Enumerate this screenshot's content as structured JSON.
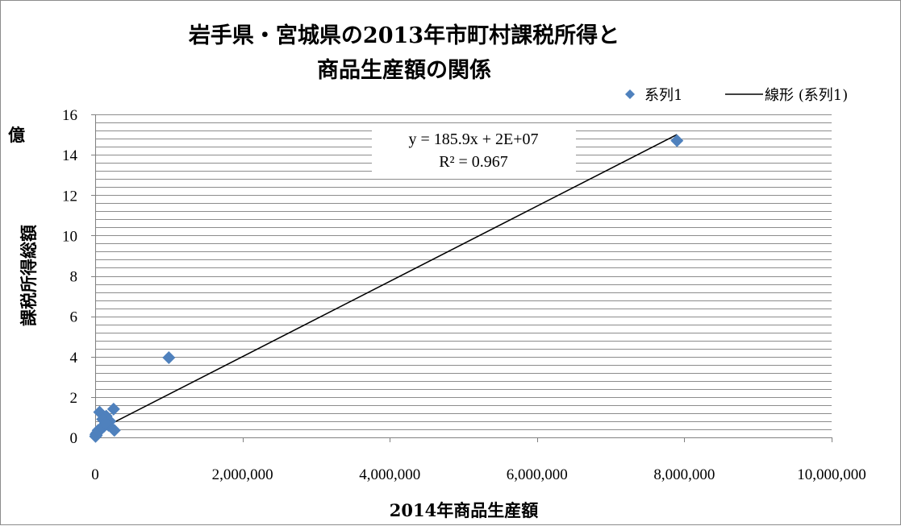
{
  "chart_data": {
    "type": "scatter",
    "title_lines": [
      "岩手県・宮城県の2013年市町村課税所得と",
      "商品生産額の関係"
    ],
    "xlabel": "2014年商品生産額",
    "ylabel": "課税所得総額",
    "y_unit": "億",
    "xlim": [
      0,
      10000000
    ],
    "ylim": [
      0,
      16
    ],
    "x_ticks": [
      0,
      2000000,
      4000000,
      6000000,
      8000000,
      10000000
    ],
    "x_tick_labels": [
      "0",
      "2,000,000",
      "4,000,000",
      "6,000,000",
      "8,000,000",
      "10,000,000"
    ],
    "y_ticks": [
      0,
      2,
      4,
      6,
      8,
      10,
      12,
      14,
      16
    ],
    "y_tick_labels": [
      "0",
      "2",
      "4",
      "6",
      "8",
      "10",
      "12",
      "14",
      "16"
    ],
    "minor_gridline_step": 0.4,
    "grid": true,
    "legend_position": "top-right",
    "series": [
      {
        "name": "系列1",
        "marker": "diamond",
        "color": "#4f81bd",
        "points": [
          {
            "x": 7900000,
            "y": 14.7
          },
          {
            "x": 1000000,
            "y": 3.95
          },
          {
            "x": 250000,
            "y": 1.4
          },
          {
            "x": 60000,
            "y": 1.25
          },
          {
            "x": 150000,
            "y": 1.05
          },
          {
            "x": 100000,
            "y": 0.9
          },
          {
            "x": 200000,
            "y": 0.8
          },
          {
            "x": 180000,
            "y": 0.6
          },
          {
            "x": 120000,
            "y": 0.55
          },
          {
            "x": 260000,
            "y": 0.35
          },
          {
            "x": 80000,
            "y": 0.45
          },
          {
            "x": 40000,
            "y": 0.35
          },
          {
            "x": 30000,
            "y": 0.25
          },
          {
            "x": 20000,
            "y": 0.2
          },
          {
            "x": 10000,
            "y": 0.15
          },
          {
            "x": 5000,
            "y": 0.05
          },
          {
            "x": 15000,
            "y": 0.1
          },
          {
            "x": 50000,
            "y": 0.3
          },
          {
            "x": 90000,
            "y": 0.5
          },
          {
            "x": 140000,
            "y": 0.7
          }
        ]
      }
    ],
    "trendline": {
      "name": "線形 (系列1)",
      "type": "linear",
      "color": "#000000",
      "x_start": 0,
      "y_start": 0.27,
      "x_end": 7900000,
      "y_end": 15.0,
      "equation_text": "y = 185.9x + 2E+07",
      "r2_text": "R² = 0.967"
    }
  }
}
